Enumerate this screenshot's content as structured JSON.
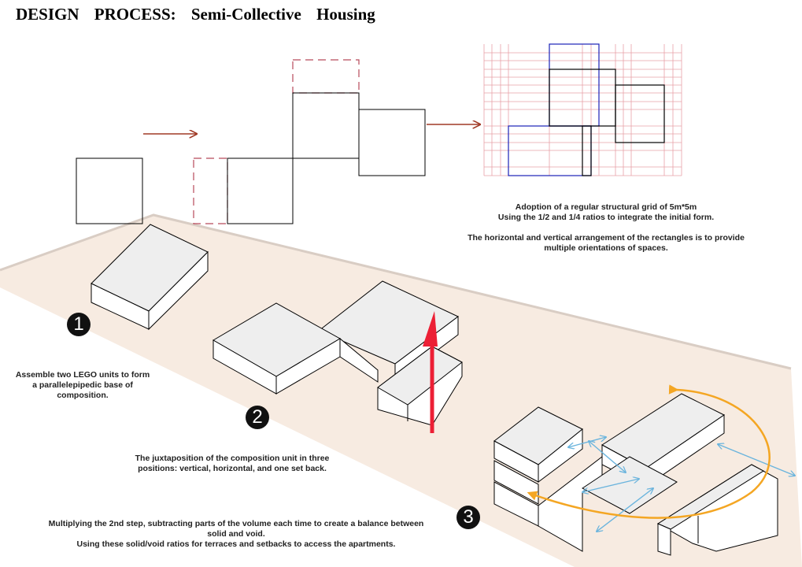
{
  "title": "DESIGN   PROCESS:   Semi-Collective   Housing",
  "steps": [
    {
      "number": "1",
      "caption_line1": "Assemble two LEGO units to form",
      "caption_line2": "a parallelepipedic base of",
      "caption_line3": "composition."
    },
    {
      "number": "2",
      "caption_line1": "The juxtaposition of the composition unit in three",
      "caption_line2": "positions: vertical, horizontal, and one set back."
    },
    {
      "number": "3",
      "caption_line1": "Multiplying the 2nd step, subtracting parts of the volume each time to create a balance between",
      "caption_line2": "solid and void.",
      "caption_line3": "Using these solid/void ratios for terraces and setbacks to access the apartments."
    }
  ],
  "grid_note": {
    "line1": "Adoption of a regular structural grid of 5m*5m",
    "line2": "Using the 1/2 and 1/4 ratios to integrate the initial form.",
    "line3": "The horizontal and vertical arrangement of the rectangles is to provide",
    "line4": "multiple orientations of spaces."
  },
  "colors": {
    "site": "#f7ebe1",
    "grid_lines": "#e8a0a8",
    "grid_rect_blue": "#1a22b8",
    "arrow": "#a03a26",
    "dashed": "#b84a5a",
    "step_arrow_red": "#ec1f35",
    "orbit_arrow": "#f4a623",
    "access_arrow": "#6ab4dd"
  },
  "icons": [
    "arrow-right-icon",
    "step-number-icon"
  ]
}
